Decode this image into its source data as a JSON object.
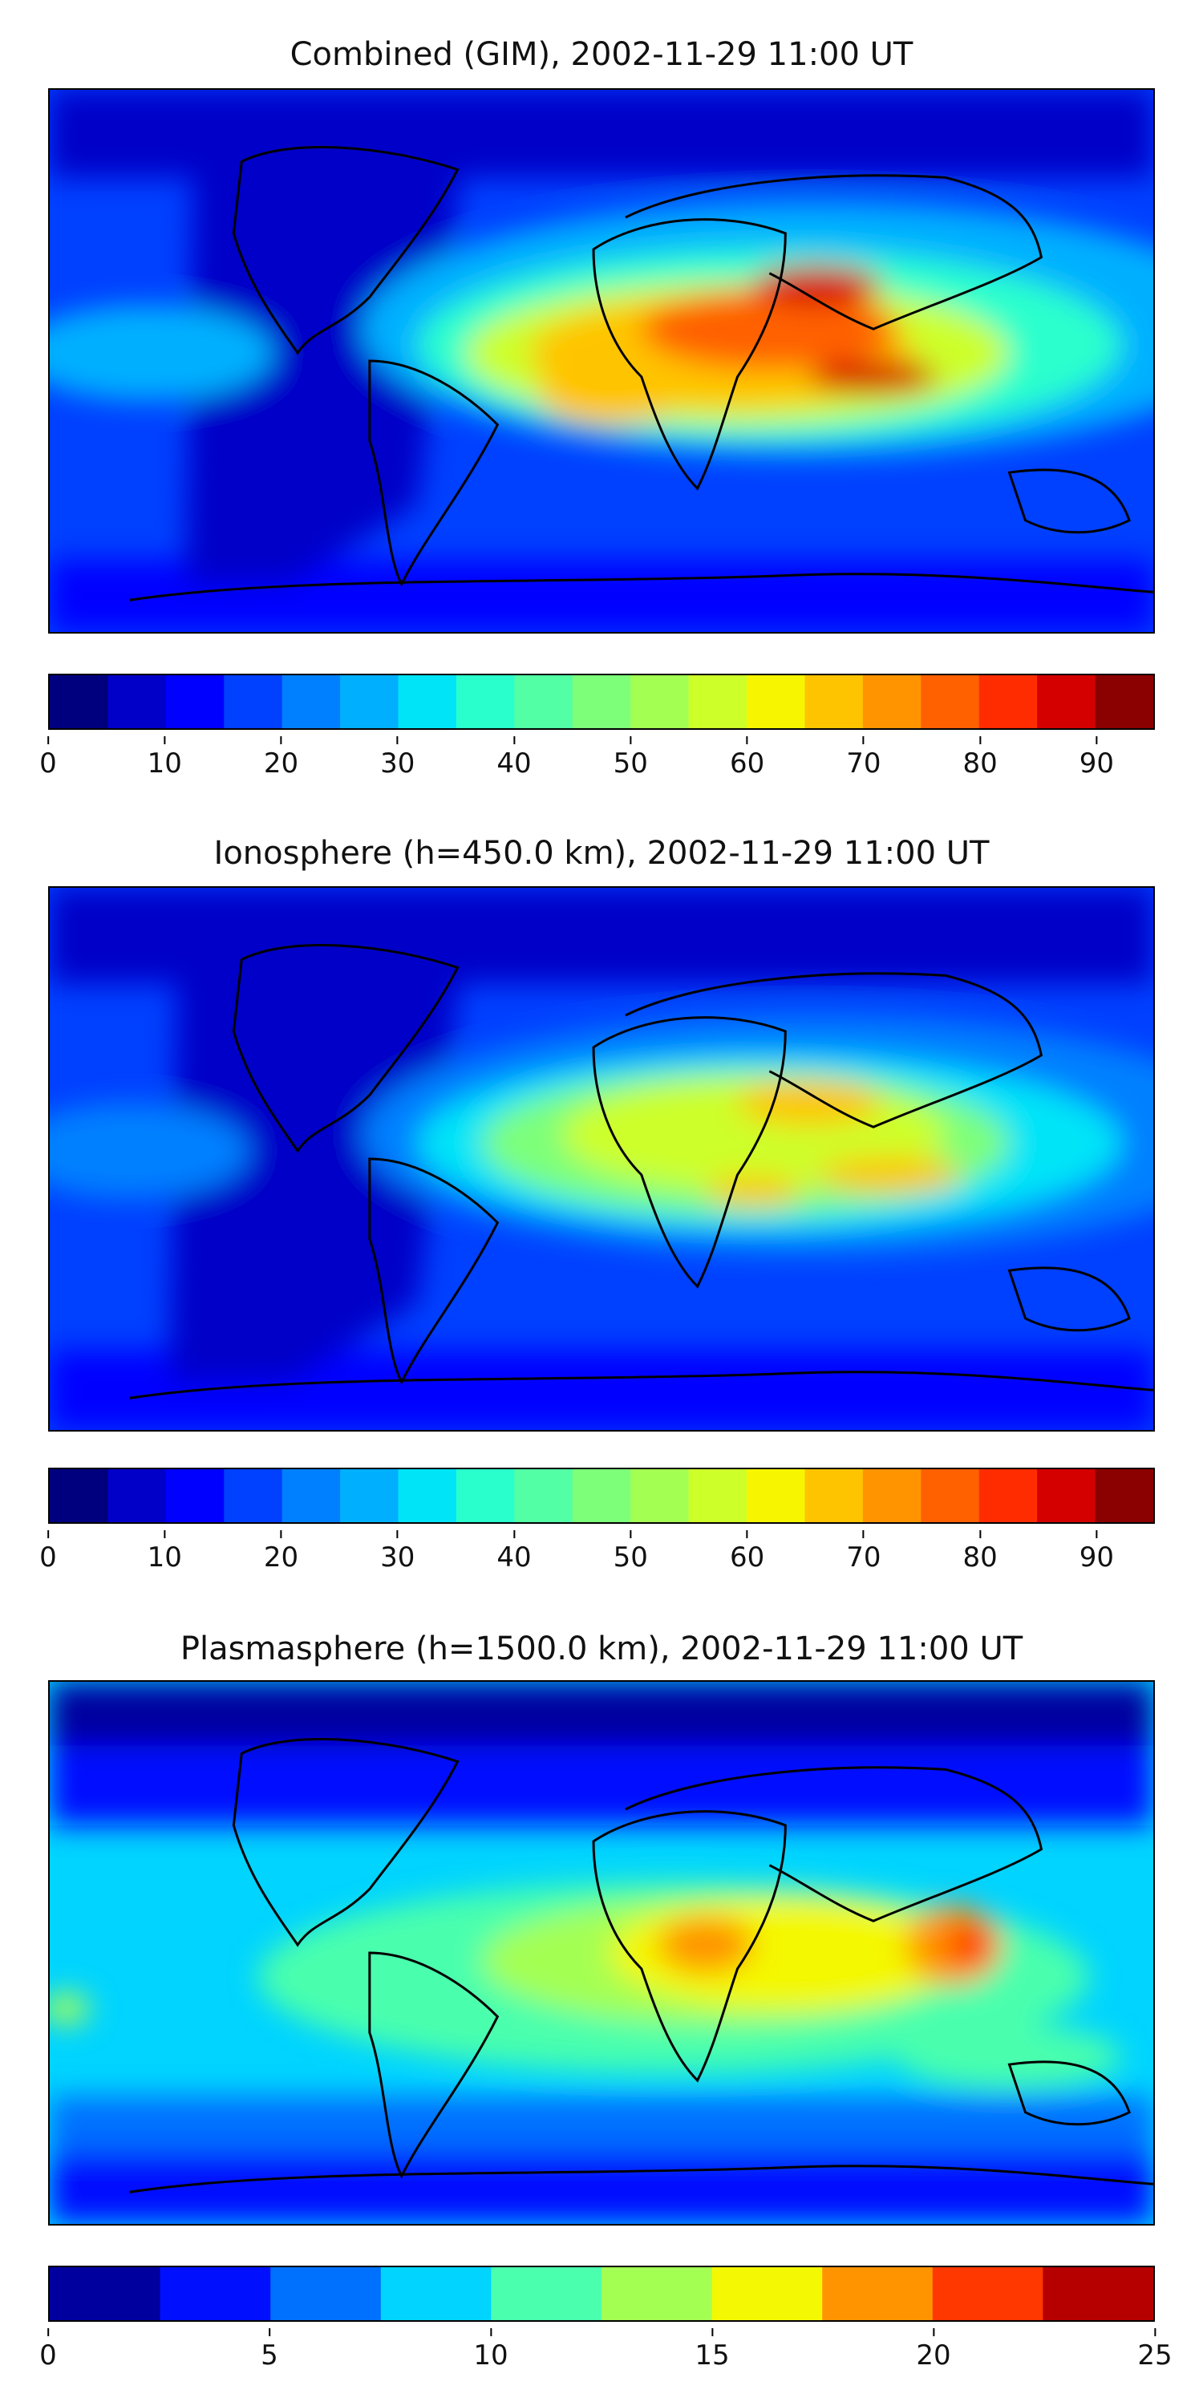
{
  "panels": [
    {
      "title": "Combined (GIM), 2002-11-29 11:00 UT",
      "colorbar": {
        "ticks": [
          "0",
          "10",
          "20",
          "30",
          "40",
          "50",
          "60",
          "70",
          "80",
          "90"
        ],
        "tick_values": [
          0,
          10,
          20,
          30,
          40,
          50,
          60,
          70,
          80,
          90
        ],
        "min": 0,
        "max": 95,
        "levels": 19
      },
      "maxima": [
        {
          "lon": 48,
          "lat": 14,
          "value": 82
        },
        {
          "lon": 55,
          "lat": -5,
          "value": 78
        },
        {
          "lon": 30,
          "lat": -10,
          "value": 70
        }
      ]
    },
    {
      "title": "Ionosphere  (h=450.0 km), 2002-11-29 11:00 UT",
      "colorbar": {
        "ticks": [
          "0",
          "10",
          "20",
          "30",
          "40",
          "50",
          "60",
          "70",
          "80",
          "90"
        ],
        "tick_values": [
          0,
          10,
          20,
          30,
          40,
          50,
          60,
          70,
          80,
          90
        ],
        "min": 0,
        "max": 95,
        "levels": 19
      },
      "maxima": [
        {
          "lon": 48,
          "lat": 16,
          "value": 68
        },
        {
          "lon": 60,
          "lat": -5,
          "value": 70
        },
        {
          "lon": 30,
          "lat": -12,
          "value": 60
        }
      ]
    },
    {
      "title": "Plasmasphere (h=1500.0 km), 2002-11-29 11:00 UT",
      "colorbar": {
        "ticks": [
          "0",
          "5",
          "10",
          "15",
          "20",
          "25"
        ],
        "tick_values": [
          0,
          5,
          10,
          15,
          20,
          25
        ],
        "min": 0,
        "max": 25,
        "levels": 10
      },
      "maxima": [
        {
          "lon": 40,
          "lat": 5,
          "value": 18
        },
        {
          "lon": 112,
          "lat": 5,
          "value": 20
        }
      ]
    }
  ],
  "colors": {
    "jet_19": [
      "#00007f",
      "#0000c8",
      "#0000ff",
      "#0040ff",
      "#0080ff",
      "#00b0ff",
      "#00e4f8",
      "#29ffcd",
      "#53ffa4",
      "#7dff7a",
      "#a4ff53",
      "#cdff29",
      "#f8f500",
      "#ffc400",
      "#ff9400",
      "#ff6000",
      "#ff2c00",
      "#d40000",
      "#8b0000"
    ],
    "jet_10": [
      "#00009f",
      "#0010ff",
      "#0070ff",
      "#00d4ff",
      "#4affad",
      "#a4ff53",
      "#f4f802",
      "#ff9400",
      "#ff3800",
      "#b60000"
    ]
  }
}
